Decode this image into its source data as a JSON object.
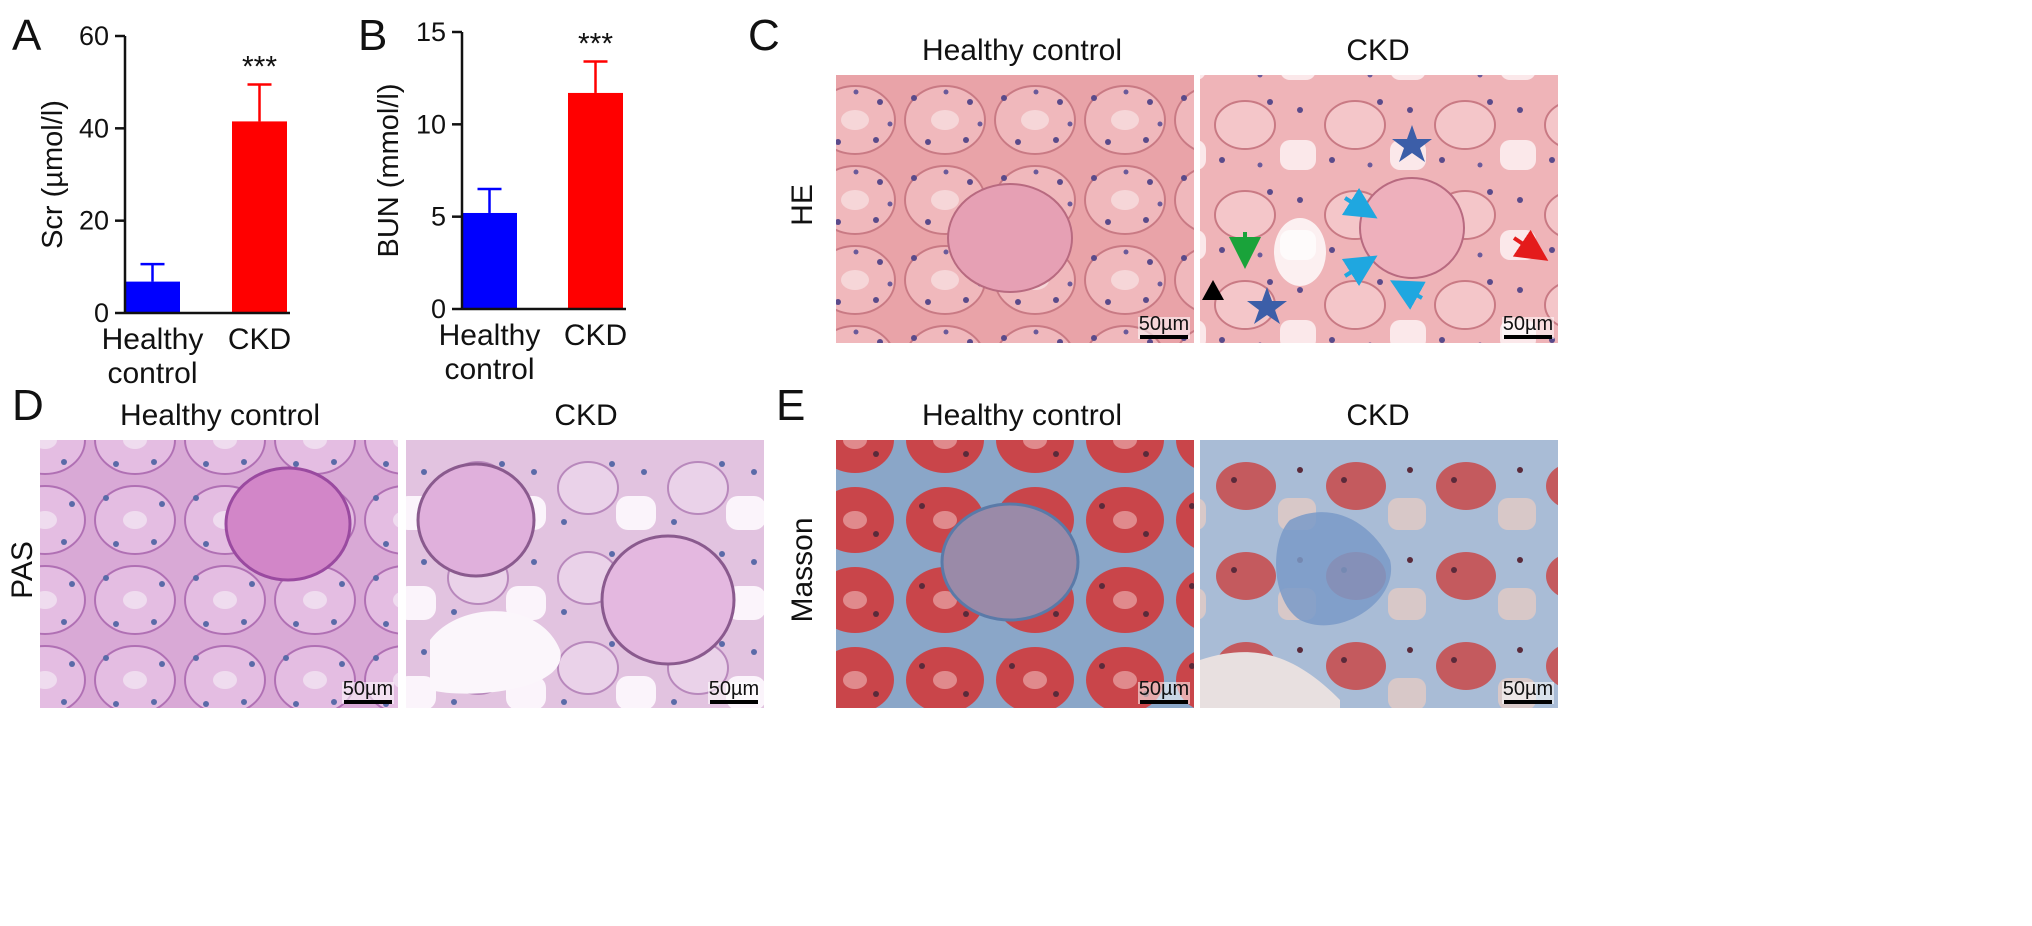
{
  "panels": {
    "A": {
      "letter": "A"
    },
    "B": {
      "letter": "B"
    },
    "C": {
      "letter": "C",
      "row_label": "HE",
      "col_left": "Healthy control",
      "col_right": "CKD",
      "scale_left": "50µm",
      "scale_right": "50µm"
    },
    "D": {
      "letter": "D",
      "row_label": "PAS",
      "col_left": "Healthy control",
      "col_right": "CKD",
      "scale_left": "50µm",
      "scale_right": "50µm"
    },
    "E": {
      "letter": "E",
      "row_label": "Masson",
      "col_left": "Healthy control",
      "col_right": "CKD",
      "scale_left": "50µm",
      "scale_right": "50µm"
    }
  },
  "chart_data": [
    {
      "type": "bar",
      "panel": "A",
      "ylabel": "Scr (µmol/l)",
      "ylim": [
        0,
        60
      ],
      "yticks": [
        "0",
        "20",
        "40",
        "60"
      ],
      "categories": [
        "Healthy control",
        "CKD"
      ],
      "category_lines": [
        [
          "Healthy",
          "control"
        ],
        [
          "CKD"
        ]
      ],
      "values": [
        6.8,
        41.5
      ],
      "errors": [
        3.8,
        8.0
      ],
      "colors": [
        "#0000ff",
        "#ff0000"
      ],
      "significance": [
        "",
        "***"
      ]
    },
    {
      "type": "bar",
      "panel": "B",
      "ylabel": "BUN (mmol/l)",
      "ylim": [
        0,
        15
      ],
      "yticks": [
        "0",
        "5",
        "10",
        "15"
      ],
      "categories": [
        "Healthy control",
        "CKD"
      ],
      "category_lines": [
        [
          "Healthy",
          "control"
        ],
        [
          "CKD"
        ]
      ],
      "values": [
        5.2,
        11.7
      ],
      "errors": [
        1.3,
        1.7
      ],
      "colors": [
        "#0000ff",
        "#ff0000"
      ],
      "significance": [
        "",
        "***"
      ]
    }
  ]
}
